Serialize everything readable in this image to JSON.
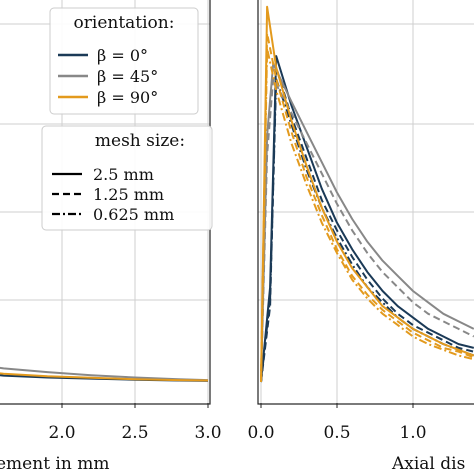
{
  "chart_data": [
    {
      "type": "line",
      "panel": "left",
      "xlabel": "ement in mm",
      "x_ticks": [
        "2.0",
        "2.5",
        "3.0"
      ],
      "xlim": [
        1.34,
        3.0
      ],
      "ylim": [
        0,
        1
      ],
      "grid": true,
      "series": [
        {
          "orientation": "β = 0°",
          "color": "#1b3a57",
          "x": [
            1.34,
            1.6,
            1.9,
            2.2,
            2.5,
            2.8,
            3.0
          ],
          "y": [
            0.025,
            0.017,
            0.012,
            0.009,
            0.006,
            0.004,
            0.003
          ]
        },
        {
          "orientation": "β = 45°",
          "color": "#888888",
          "x": [
            1.34,
            1.6,
            1.9,
            2.2,
            2.5,
            2.8,
            3.0
          ],
          "y": [
            0.05,
            0.036,
            0.026,
            0.018,
            0.012,
            0.007,
            0.005
          ]
        },
        {
          "orientation": "β = 90°",
          "color": "#e39a1d",
          "x": [
            1.34,
            1.6,
            1.9,
            2.2,
            2.5,
            2.8,
            3.0
          ],
          "y": [
            0.032,
            0.022,
            0.015,
            0.011,
            0.007,
            0.005,
            0.004
          ]
        }
      ],
      "legend_orientation": {
        "title": "orientation:",
        "entries": [
          {
            "label": "β = 0°",
            "color": "#1b3a57"
          },
          {
            "label": "β = 45°",
            "color": "#888888"
          },
          {
            "label": "β = 90°",
            "color": "#e39a1d"
          }
        ]
      },
      "legend_mesh": {
        "title": "mesh size:",
        "entries": [
          {
            "label": "2.5 mm",
            "style": "solid"
          },
          {
            "label": "1.25 mm",
            "style": "dashed"
          },
          {
            "label": "0.625 mm",
            "style": "dashdot"
          }
        ]
      }
    },
    {
      "type": "line",
      "panel": "right",
      "xlabel": "Axial dis",
      "x_ticks": [
        "0.0",
        "0.5",
        "1.0"
      ],
      "xlim": [
        -0.02,
        1.4
      ],
      "ylim": [
        0,
        1
      ],
      "grid": true,
      "series": [
        {
          "orientation": "β = 0°",
          "color": "#1b3a57",
          "mesh": "2.5 mm",
          "x": [
            0.0,
            0.06,
            0.1,
            0.2,
            0.3,
            0.4,
            0.5,
            0.6,
            0.7,
            0.8,
            0.9,
            1.0,
            1.1,
            1.2,
            1.3,
            1.4
          ],
          "y": [
            0.0,
            0.25,
            0.86,
            0.73,
            0.62,
            0.51,
            0.42,
            0.35,
            0.29,
            0.24,
            0.2,
            0.17,
            0.14,
            0.12,
            0.1,
            0.09
          ]
        },
        {
          "orientation": "β = 0°",
          "color": "#1b3a57",
          "mesh": "1.25 mm",
          "x": [
            0.0,
            0.06,
            0.1,
            0.2,
            0.3,
            0.4,
            0.5,
            0.6,
            0.7,
            0.8,
            0.9,
            1.0,
            1.1,
            1.2,
            1.3,
            1.4
          ],
          "y": [
            0.0,
            0.2,
            0.83,
            0.7,
            0.59,
            0.48,
            0.4,
            0.33,
            0.27,
            0.22,
            0.18,
            0.15,
            0.13,
            0.11,
            0.09,
            0.08
          ]
        },
        {
          "orientation": "β = 0°",
          "color": "#1b3a57",
          "mesh": "0.625 mm",
          "x": [
            0.0,
            0.06,
            0.1,
            0.2,
            0.3,
            0.4,
            0.5,
            0.6,
            0.7,
            0.8,
            0.9,
            1.0,
            1.1,
            1.2,
            1.3,
            1.4
          ],
          "y": [
            0.0,
            0.22,
            0.8,
            0.68,
            0.56,
            0.46,
            0.38,
            0.31,
            0.25,
            0.21,
            0.17,
            0.14,
            0.12,
            0.1,
            0.085,
            0.07
          ]
        },
        {
          "orientation": "β = 45°",
          "color": "#888888",
          "mesh": "2.5 mm",
          "x": [
            0.0,
            0.04,
            0.08,
            0.2,
            0.3,
            0.4,
            0.5,
            0.6,
            0.7,
            0.8,
            0.9,
            1.0,
            1.1,
            1.2,
            1.3,
            1.4
          ],
          "y": [
            0.0,
            0.65,
            0.84,
            0.74,
            0.66,
            0.58,
            0.5,
            0.43,
            0.37,
            0.32,
            0.28,
            0.24,
            0.21,
            0.18,
            0.16,
            0.14
          ]
        },
        {
          "orientation": "β = 45°",
          "color": "#888888",
          "mesh": "1.25 mm",
          "x": [
            0.0,
            0.04,
            0.08,
            0.2,
            0.3,
            0.4,
            0.5,
            0.6,
            0.7,
            0.8,
            0.9,
            1.0,
            1.1,
            1.2,
            1.3,
            1.4
          ],
          "y": [
            0.0,
            0.6,
            0.8,
            0.71,
            0.63,
            0.55,
            0.47,
            0.4,
            0.34,
            0.29,
            0.25,
            0.21,
            0.18,
            0.16,
            0.14,
            0.12
          ]
        },
        {
          "orientation": "β = 90°",
          "color": "#e39a1d",
          "mesh": "2.5 mm",
          "x": [
            0.0,
            0.04,
            0.1,
            0.2,
            0.3,
            0.4,
            0.5,
            0.6,
            0.7,
            0.8,
            0.9,
            1.0,
            1.1,
            1.2,
            1.3,
            1.4
          ],
          "y": [
            0.0,
            0.99,
            0.83,
            0.69,
            0.57,
            0.46,
            0.37,
            0.3,
            0.25,
            0.2,
            0.17,
            0.14,
            0.12,
            0.1,
            0.085,
            0.07
          ]
        },
        {
          "orientation": "β = 90°",
          "color": "#e39a1d",
          "mesh": "1.25 mm",
          "x": [
            0.0,
            0.04,
            0.1,
            0.2,
            0.3,
            0.4,
            0.5,
            0.6,
            0.7,
            0.8,
            0.9,
            1.0,
            1.1,
            1.2,
            1.3,
            1.4
          ],
          "y": [
            0.0,
            0.92,
            0.8,
            0.66,
            0.54,
            0.44,
            0.35,
            0.28,
            0.23,
            0.19,
            0.16,
            0.13,
            0.11,
            0.09,
            0.08,
            0.065
          ]
        },
        {
          "orientation": "β = 90°",
          "color": "#e39a1d",
          "mesh": "0.625 mm",
          "x": [
            0.0,
            0.04,
            0.1,
            0.2,
            0.3,
            0.4,
            0.5,
            0.6,
            0.7,
            0.8,
            0.9,
            1.0,
            1.1,
            1.2,
            1.3,
            1.4
          ],
          "y": [
            0.0,
            0.88,
            0.77,
            0.63,
            0.52,
            0.42,
            0.34,
            0.27,
            0.22,
            0.18,
            0.15,
            0.12,
            0.1,
            0.085,
            0.07,
            0.06
          ]
        }
      ]
    }
  ]
}
